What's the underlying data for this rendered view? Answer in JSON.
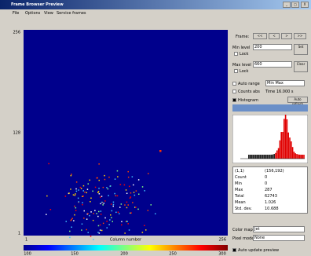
{
  "window": {
    "title": "Frame Browser Preview",
    "buttons": [
      "_",
      "□",
      "X"
    ]
  },
  "menu": [
    "File",
    "Options",
    "View",
    "Service frames"
  ],
  "plot": {
    "y_labels": [
      "256",
      "128",
      "1"
    ],
    "x_labels": [
      "1",
      "Column number",
      "256"
    ],
    "colorbar_labels": [
      "100",
      "150",
      "200",
      "250",
      "300"
    ]
  },
  "panel": {
    "frame_label": "Frame:",
    "frame_buttons": [
      "<<",
      "<",
      ">",
      ">>"
    ],
    "min_level": "Min level",
    "min_value": "200",
    "max_level": "Max level",
    "max_value": "660",
    "lock": "Lock",
    "set_button": "Set",
    "clear_button": "Clear",
    "auto_range": "Auto range",
    "range_mode": "Min Max",
    "counts_abs": "Counts abs",
    "time": "Time 16.000 s",
    "histogram": "Histogram",
    "auto_refresh": "Auto refresh",
    "stats": [
      [
        "(1,1)",
        "(156,192)"
      ],
      [
        "Count",
        "0"
      ],
      [
        "Min",
        "0"
      ],
      [
        "Max",
        "287"
      ],
      [
        "Total",
        "62743"
      ],
      [
        "Mean",
        "1.026"
      ],
      [
        "Std. dev.",
        "10.688"
      ]
    ],
    "color_map": "Color map",
    "color_map_value": "Jet",
    "pixel_mode": "Pixel mode",
    "pixel_mode_value": "None",
    "auto_update": "Auto update preview"
  }
}
